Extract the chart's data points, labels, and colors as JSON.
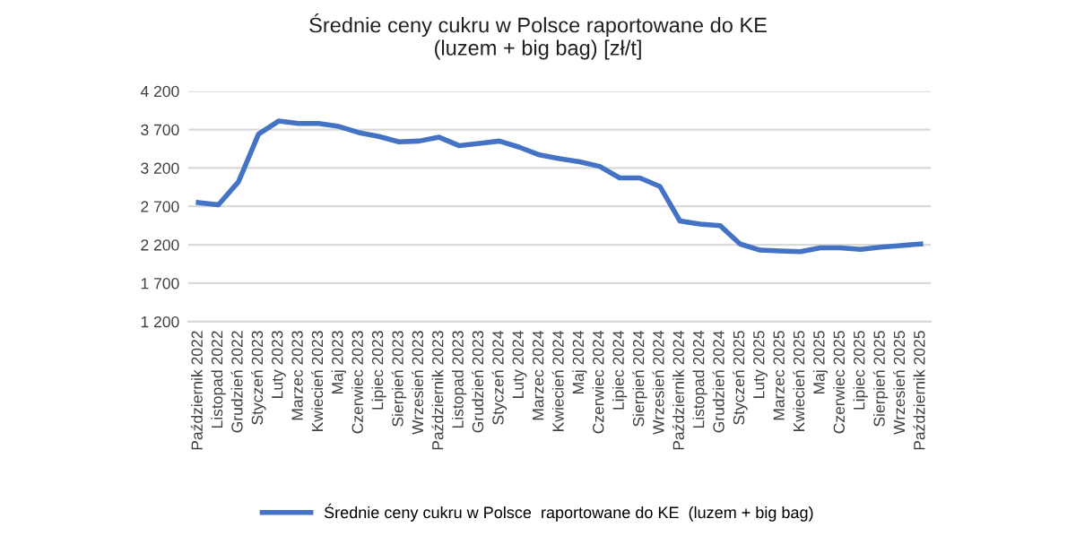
{
  "chart_data": {
    "type": "line",
    "title": "Średnie ceny cukru w Polsce raportowane do KE\n(luzem + big bag) [zł/t]",
    "categories": [
      "Październik 2022",
      "Listopad 2022",
      "Grudzień 2022",
      "Styczeń 2023",
      "Luty 2023",
      "Marzec 2023",
      "Kwiecień 2023",
      "Maj 2023",
      "Czerwiec 2023",
      "Lipiec 2023",
      "Sierpień 2023",
      "Wrzesień 2023",
      "Październik 2023",
      "Listopad 2023",
      "Grudzień 2023",
      "Styczeń 2024",
      "Luty 2024",
      "Marzec 2024",
      "Kwiecień 2024",
      "Maj 2024",
      "Czerwiec 2024",
      "Lipiec 2024",
      "Sierpień 2024",
      "Wrzesień 2024",
      "Październik 2024",
      "Listopad 2024",
      "Grudzień 2024",
      "Styczeń 2025",
      "Luty 2025",
      "Marzec 2025",
      "Kwiecień 2025",
      "Maj 2025",
      "Czerwiec 2025",
      "Lipiec 2025",
      "Sierpień 2025",
      "Wrzesień 2025",
      "Październik 2025"
    ],
    "series": [
      {
        "name": "Średnie ceny cukru w Polsce  raportowane do KE  (luzem + big bag)",
        "color": "#4472c4",
        "values": [
          2750,
          2720,
          3020,
          3640,
          3810,
          3780,
          3780,
          3740,
          3660,
          3610,
          3540,
          3550,
          3600,
          3490,
          3520,
          3550,
          3470,
          3370,
          3320,
          3280,
          3220,
          3070,
          3070,
          2960,
          2510,
          2470,
          2450,
          2210,
          2130,
          2120,
          2110,
          2160,
          2160,
          2140,
          2170,
          2190,
          2210
        ]
      }
    ],
    "ylim": [
      1200,
      4200
    ],
    "yticks": [
      {
        "value": 1200,
        "label": "1 200"
      },
      {
        "value": 1700,
        "label": "1 700"
      },
      {
        "value": 2200,
        "label": "2 200"
      },
      {
        "value": 2700,
        "label": "2 700"
      },
      {
        "value": 3200,
        "label": "3 200"
      },
      {
        "value": 3700,
        "label": "3 700"
      },
      {
        "value": 4200,
        "label": "4 200"
      }
    ],
    "grid": "y",
    "legend": "bottom",
    "marker": "none",
    "line_style": "solid"
  }
}
